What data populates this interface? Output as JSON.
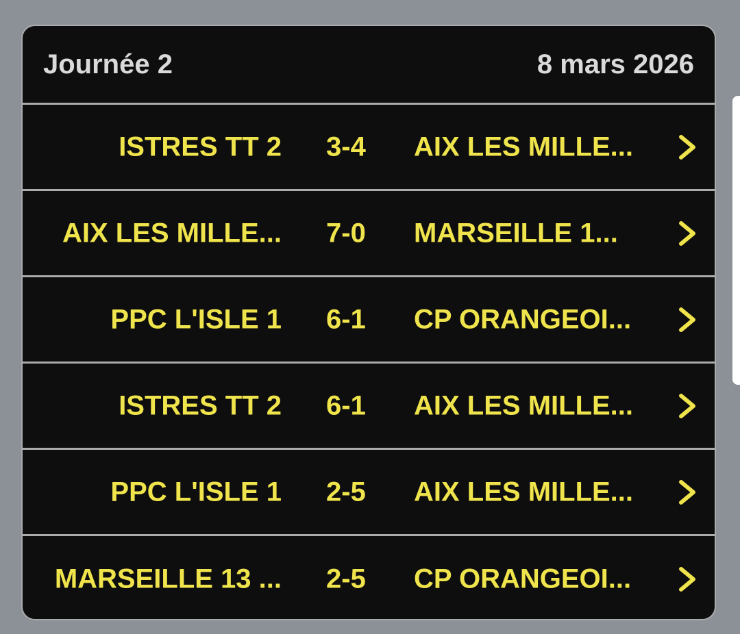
{
  "header": {
    "title": "Journée 2",
    "date": "8 mars 2026"
  },
  "colors": {
    "accent": "#f0e44c",
    "background": "#0e0e0e",
    "header_text": "#dadada"
  },
  "matches": [
    {
      "home": "ISTRES TT 2",
      "score": "3-4",
      "away": "AIX LES MILLE...",
      "icon": "chevron-right-icon"
    },
    {
      "home": "AIX LES MILLE...",
      "score": "7-0",
      "away": "MARSEILLE 1...",
      "icon": "chevron-right-icon"
    },
    {
      "home": "PPC L'ISLE 1",
      "score": "6-1",
      "away": "CP ORANGEOI...",
      "icon": "chevron-right-icon"
    },
    {
      "home": "ISTRES TT 2",
      "score": "6-1",
      "away": "AIX LES MILLE...",
      "icon": "chevron-right-icon"
    },
    {
      "home": "PPC L'ISLE 1",
      "score": "2-5",
      "away": "AIX LES MILLE...",
      "icon": "chevron-right-icon"
    },
    {
      "home": "MARSEILLE 13 ...",
      "score": "2-5",
      "away": "CP ORANGEOI...",
      "icon": "chevron-right-icon"
    }
  ]
}
